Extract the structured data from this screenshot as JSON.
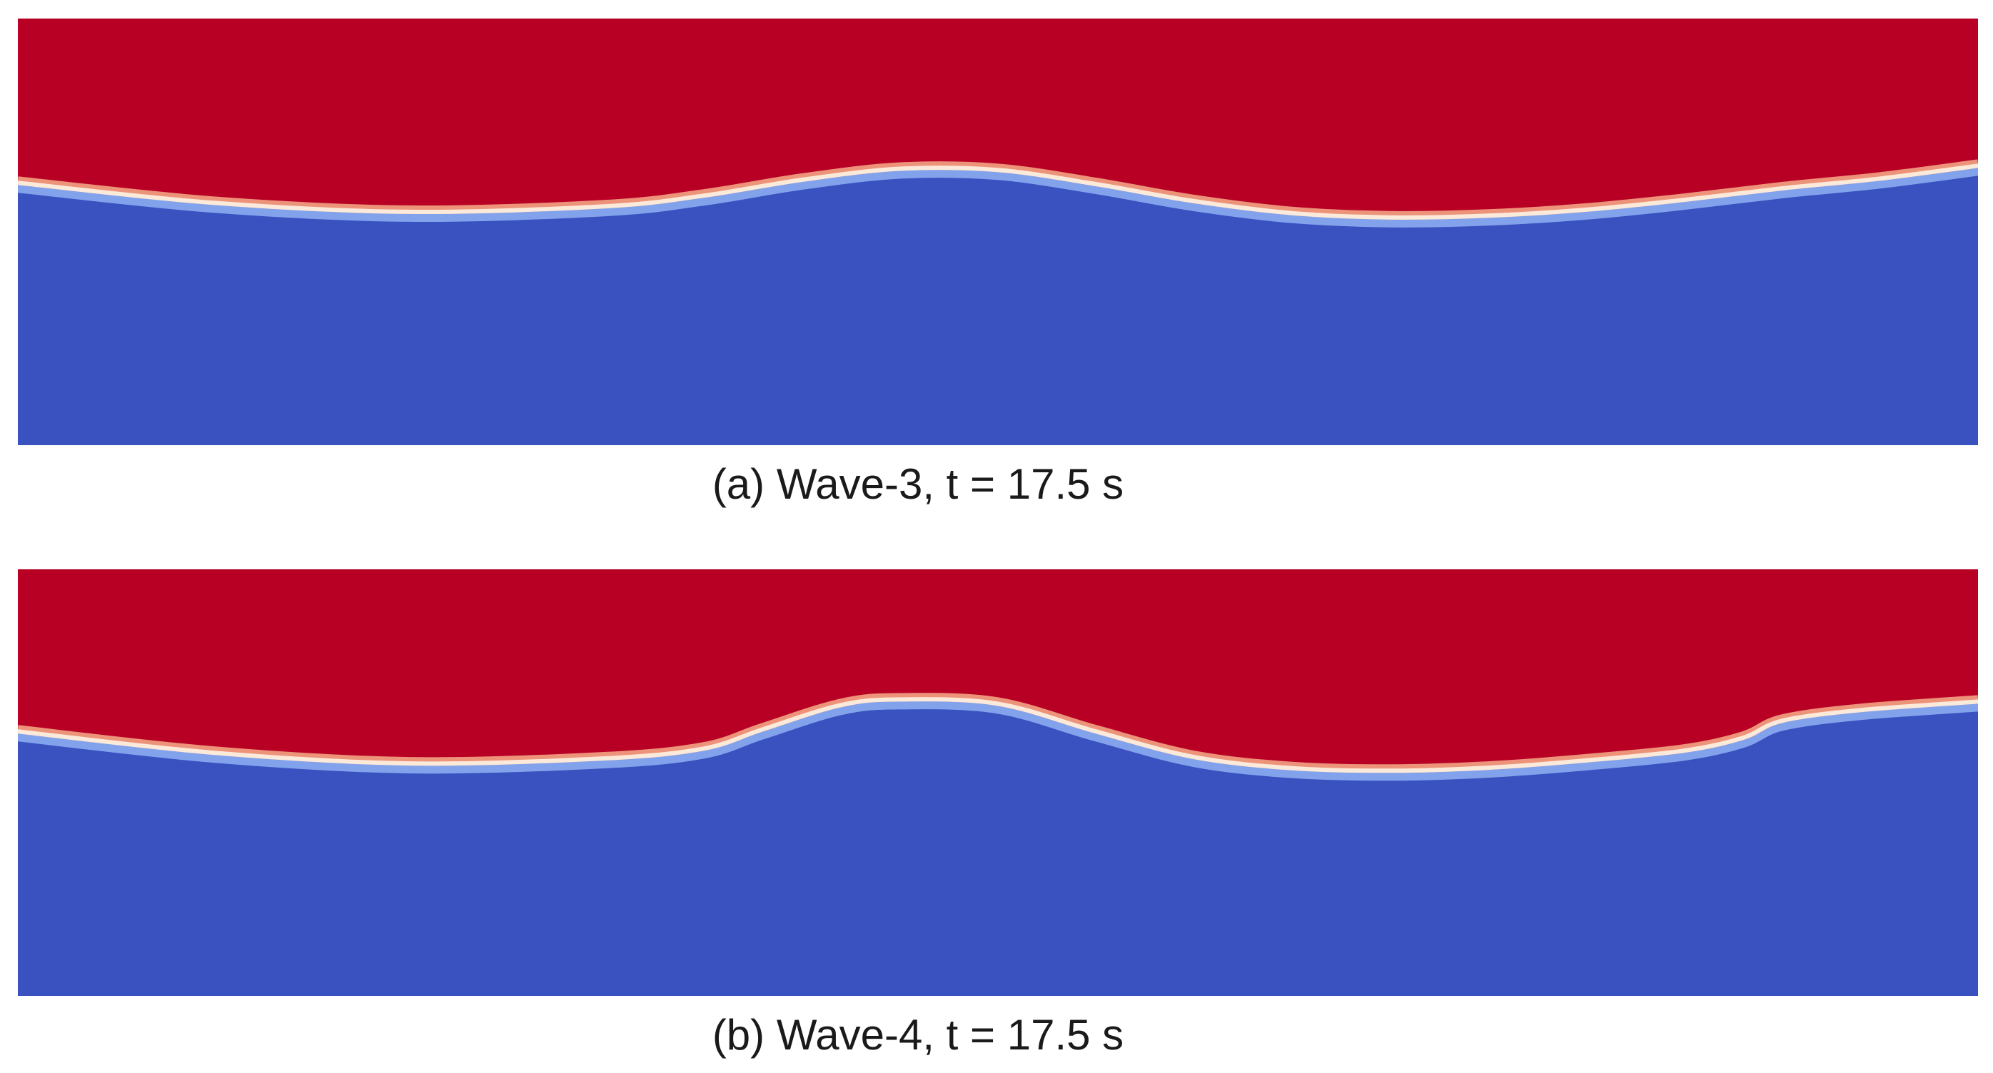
{
  "figure": {
    "colors": {
      "upper_fluid": "#b80024",
      "lower_fluid": "#3a51c0",
      "interface_light": "#fbe9d9",
      "interface_warm": "#f2a384",
      "interface_cool": "#8fb2f3"
    },
    "panels": [
      {
        "id": "a",
        "caption": "(a) Wave-3, t = 17.5 s",
        "interface_profile": {
          "description_x_units": "fraction of domain length",
          "description_y_units": "fraction of domain height from top",
          "x": [
            0,
            0.1,
            0.2,
            0.3,
            0.35,
            0.4,
            0.45,
            0.5,
            0.55,
            0.6,
            0.65,
            0.7,
            0.75,
            0.8,
            0.85,
            0.9,
            0.95,
            1.0
          ],
          "y": [
            0.385,
            0.432,
            0.453,
            0.44,
            0.415,
            0.378,
            0.352,
            0.355,
            0.388,
            0.428,
            0.456,
            0.466,
            0.462,
            0.448,
            0.425,
            0.398,
            0.375,
            0.345
          ]
        }
      },
      {
        "id": "b",
        "caption": "(b) Wave-4, t = 17.5 s",
        "interface_profile": {
          "description_x_units": "fraction of domain length",
          "description_y_units": "fraction of domain height from top",
          "x": [
            0,
            0.1,
            0.2,
            0.3,
            0.35,
            0.38,
            0.42,
            0.45,
            0.5,
            0.55,
            0.6,
            0.65,
            0.7,
            0.75,
            0.8,
            0.85,
            0.88,
            0.9,
            0.94,
            1.0
          ],
          "y": [
            0.38,
            0.43,
            0.455,
            0.443,
            0.42,
            0.375,
            0.318,
            0.305,
            0.315,
            0.38,
            0.44,
            0.466,
            0.472,
            0.465,
            0.448,
            0.425,
            0.395,
            0.355,
            0.33,
            0.31
          ]
        }
      }
    ]
  }
}
